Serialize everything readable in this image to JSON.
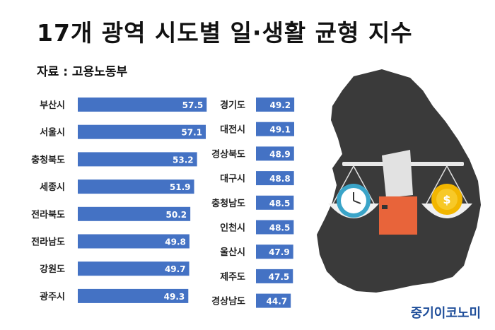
{
  "header": {
    "title": "17개 광역 시도별 일·생활 균형 지수",
    "source": "자료 : 고용노동부"
  },
  "brand": "중기이코노미",
  "colors": {
    "bar": "#4472c4",
    "map": "#3a3a3a",
    "background": "#ffffff",
    "brand": "#1f4e9a"
  },
  "icons": [
    "korea-map-illustration",
    "balance-scale-icon",
    "clock-icon",
    "coin-icon"
  ],
  "chart_data": {
    "type": "bar",
    "orientation": "horizontal",
    "title": "17개 광역 시도별 일·생활 균형 지수",
    "categories": [
      "부산시",
      "서울시",
      "충청북도",
      "세종시",
      "전라북도",
      "전라남도",
      "강원도",
      "광주시",
      "경기도",
      "대전시",
      "경상북도",
      "대구시",
      "충청남도",
      "인천시",
      "울산시",
      "제주도",
      "경상남도"
    ],
    "values": [
      57.5,
      57.1,
      53.2,
      51.9,
      50.2,
      49.8,
      49.7,
      49.3,
      49.2,
      49.1,
      48.9,
      48.8,
      48.5,
      48.5,
      47.9,
      47.5,
      44.7
    ],
    "grid": false,
    "legend": "none"
  }
}
